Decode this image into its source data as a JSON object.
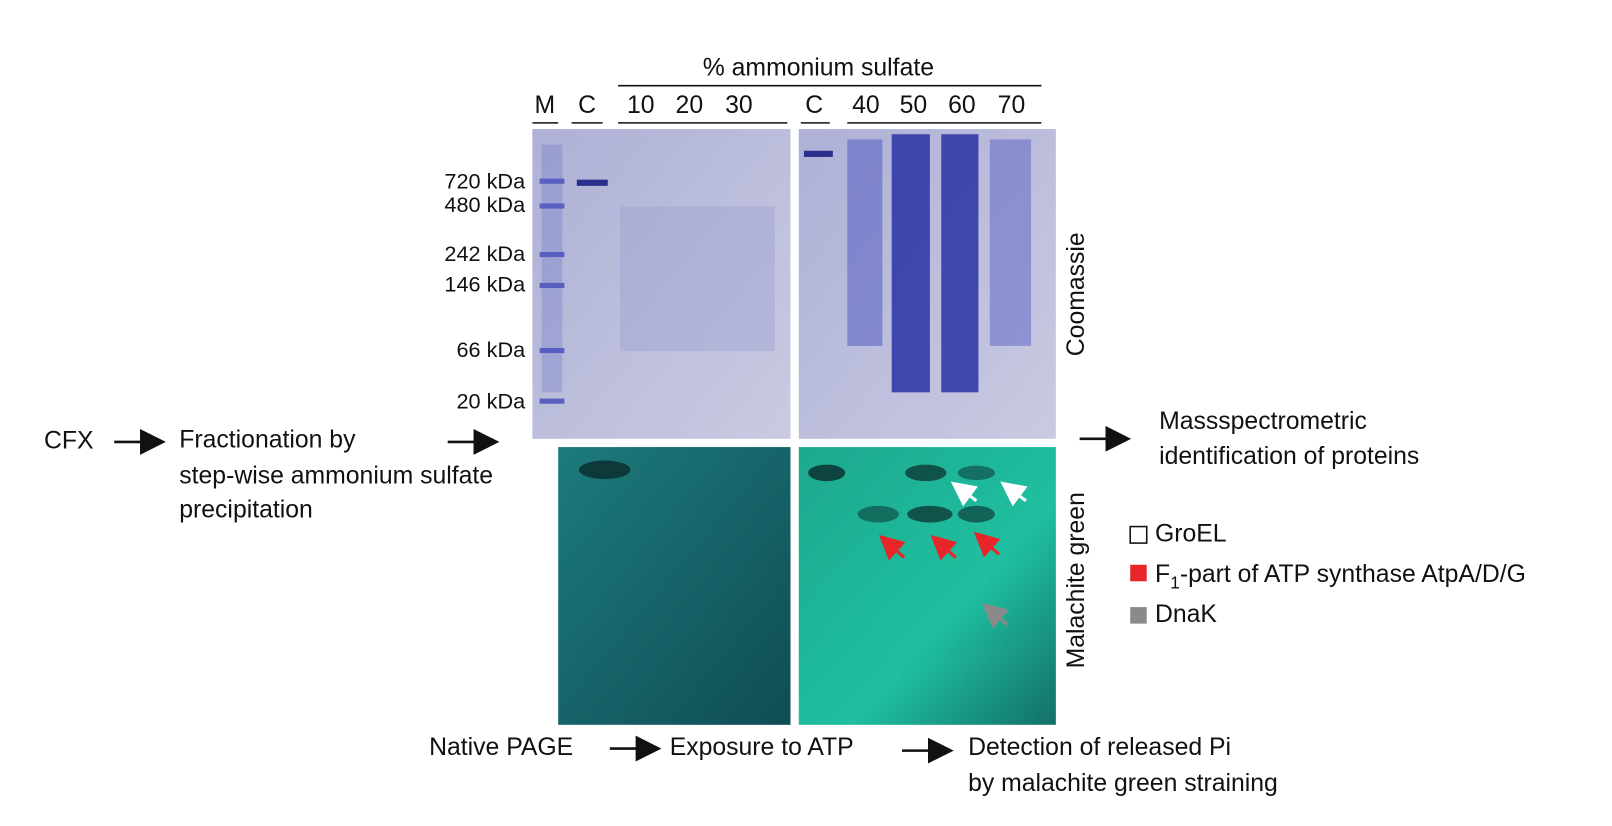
{
  "header": "% ammonium sulfate",
  "lanes": [
    "M",
    "C",
    "10",
    "20",
    "30",
    "C",
    "40",
    "50",
    "60",
    "70"
  ],
  "markers": [
    "720 kDa",
    "480 kDa",
    "242 kDa",
    "146 kDa",
    "66 kDa",
    "20 kDa"
  ],
  "side_labels": [
    "Coomassie",
    "Malachite green"
  ],
  "left_flow": {
    "start": "CFX",
    "step": [
      "Fractionation by",
      "step-wise ammonium sulfate",
      "precipitation"
    ]
  },
  "right_flow": [
    "Massspectrometric",
    "identification of proteins"
  ],
  "bottom_flow": {
    "steps": [
      "Native PAGE",
      "Exposure to ATP"
    ],
    "detection": [
      "Detection of released Pi",
      "by malachite green straining"
    ]
  },
  "legend": [
    {
      "label": "GroEL"
    },
    {
      "label_parts": [
        "F",
        "1",
        "-part of ATP synthase AtpA/D/G"
      ]
    },
    {
      "label": "DnaK"
    }
  ]
}
